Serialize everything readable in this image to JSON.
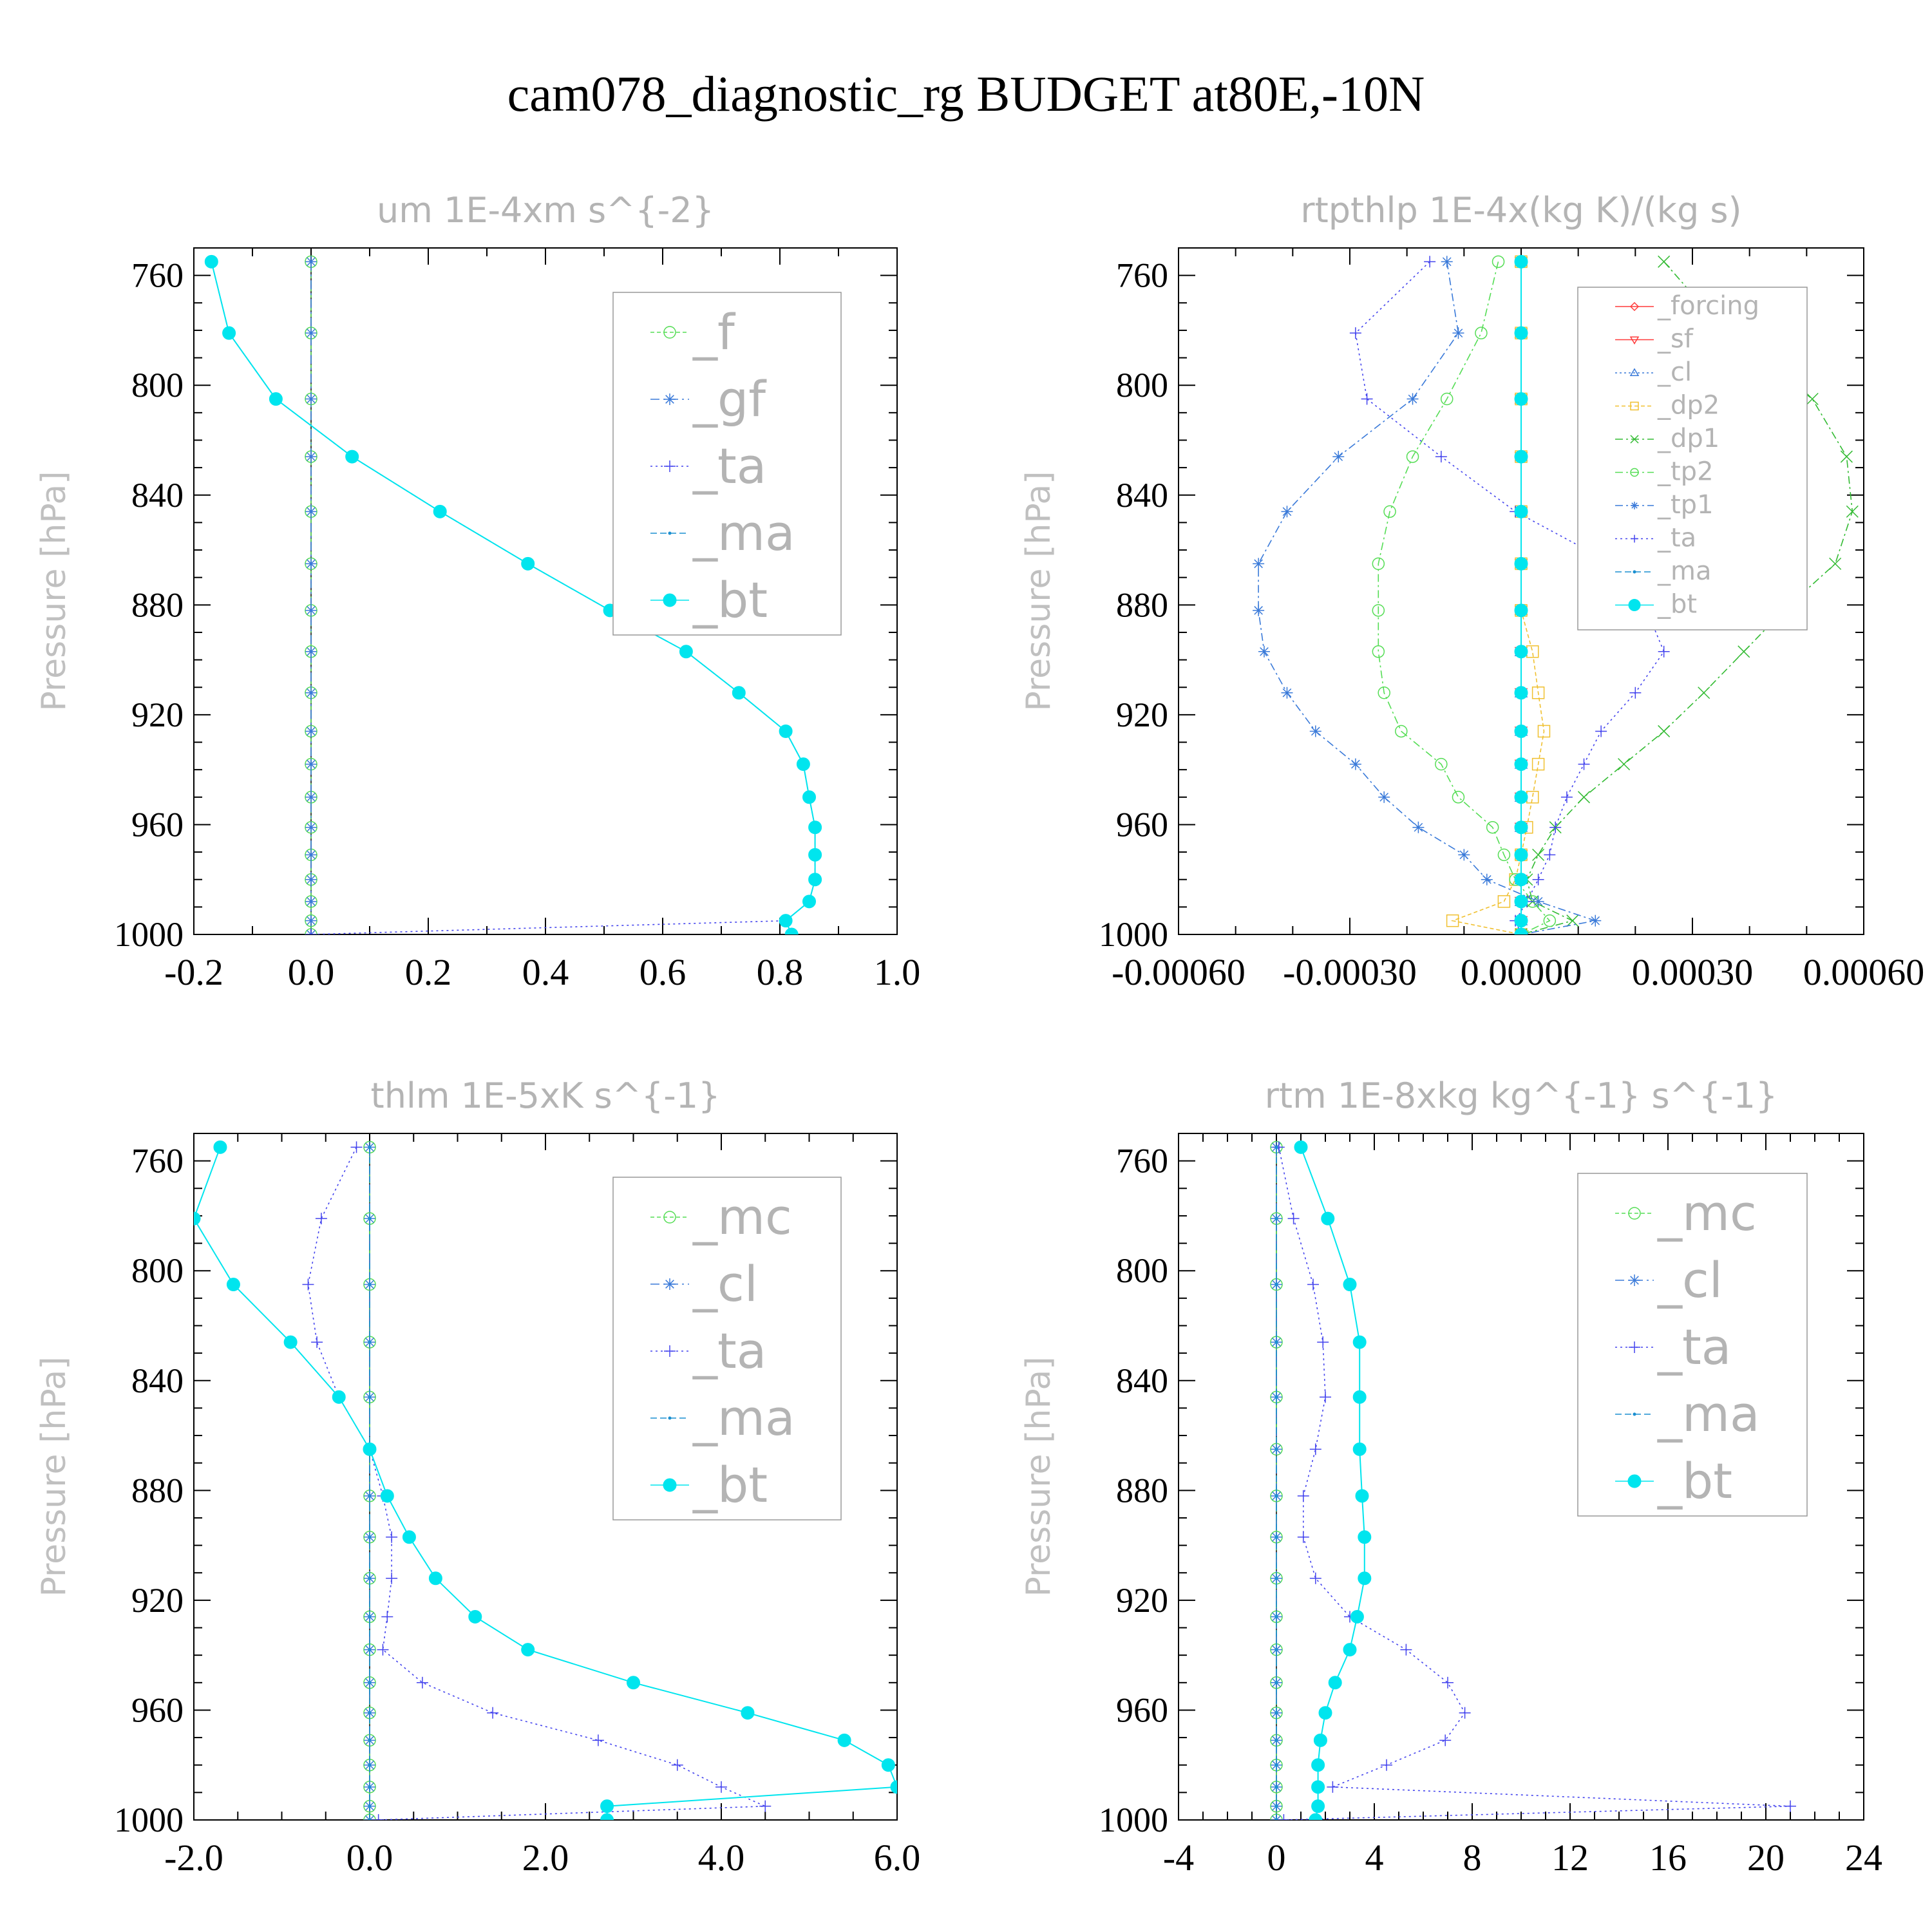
{
  "figure_title": "cam078_diagnostic_rg  BUDGET at80E,-10N",
  "colors": {
    "forcing": "#ff3b3b",
    "sf": "#ff3b3b",
    "cl": "#3a7ad9",
    "dp2": "#f0c030",
    "dp1": "#33bb33",
    "f": "#55dd55",
    "mc": "#55dd55",
    "tp2": "#55dd55",
    "gf": "#3a7ad9",
    "tp1": "#3a7ad9",
    "ta": "#4444ee",
    "ma": "#1a8fd0",
    "bt": "#00e5ee"
  },
  "chart_data": [
    {
      "type": "line",
      "title": "um  1E-4xm s^{-2}",
      "ylabel": "Pressure [hPa]",
      "xlim": [
        -0.2,
        1.0
      ],
      "ylim": [
        1000,
        750
      ],
      "xticks": [
        "-0.2",
        "0.0",
        "0.2",
        "0.4",
        "0.6",
        "0.8",
        "1.0"
      ],
      "yticks": [
        "760",
        "800",
        "840",
        "880",
        "920",
        "960",
        "1000"
      ],
      "legend": {
        "position": "top-right",
        "font": "large",
        "entries": [
          "_f",
          "_gf",
          "_ta",
          "_ma",
          "_bt"
        ]
      },
      "y": [
        755,
        781,
        805,
        826,
        846,
        865,
        882,
        897,
        912,
        926,
        938,
        950,
        961,
        971,
        980,
        988,
        995,
        1000
      ],
      "series": [
        {
          "name": "_f",
          "marker": "circle-open",
          "dash": "6,4",
          "values": [
            0,
            0,
            0,
            0,
            0,
            0,
            0,
            0,
            0,
            0,
            0,
            0,
            0,
            0,
            0,
            0,
            0,
            0
          ]
        },
        {
          "name": "_gf",
          "marker": "star",
          "dash": "14,6,3,6",
          "values": [
            0,
            0,
            0,
            0,
            0,
            0,
            0,
            0,
            0,
            0,
            0,
            0,
            0,
            0,
            0,
            0,
            0,
            0
          ]
        },
        {
          "name": "_ta",
          "marker": "plus",
          "dash": "3,5",
          "values": [
            -0.17,
            -0.14,
            -0.06,
            0.07,
            0.22,
            0.37,
            0.51,
            0.64,
            0.73,
            0.81,
            0.84,
            0.85,
            0.86,
            0.86,
            0.86,
            0.85,
            0.81,
            0.0
          ]
        },
        {
          "name": "_ma",
          "marker": "dot",
          "dash": "10,5",
          "values": [
            -0.17,
            -0.14,
            -0.06,
            0.07,
            0.22,
            0.37,
            0.51,
            0.64,
            0.73,
            0.81,
            0.84,
            0.85,
            0.86,
            0.86,
            0.86,
            0.85,
            0.81,
            0.82
          ]
        },
        {
          "name": "_bt",
          "marker": "filled-circle",
          "dash": "",
          "values": [
            -0.17,
            -0.14,
            -0.06,
            0.07,
            0.22,
            0.37,
            0.51,
            0.64,
            0.73,
            0.81,
            0.84,
            0.85,
            0.86,
            0.86,
            0.86,
            0.85,
            0.81,
            0.82
          ]
        }
      ]
    },
    {
      "type": "line",
      "title": "rtpthlp  1E-4x(kg K)/(kg s)",
      "ylabel": "Pressure [hPa]",
      "xlim": [
        -0.0006,
        0.0006
      ],
      "ylim": [
        1000,
        750
      ],
      "xticks": [
        "-0.00060",
        "-0.00030",
        "0.00000",
        "0.00030",
        "0.00060"
      ],
      "yticks": [
        "760",
        "800",
        "840",
        "880",
        "920",
        "960",
        "1000"
      ],
      "legend": {
        "position": "top-right",
        "font": "small",
        "entries": [
          "_forcing",
          "_sf",
          "_cl",
          "_dp2",
          "_dp1",
          "_tp2",
          "_tp1",
          "_ta",
          "_ma",
          "_bt"
        ]
      },
      "y": [
        755,
        781,
        805,
        826,
        846,
        865,
        882,
        897,
        912,
        926,
        938,
        950,
        961,
        971,
        980,
        988,
        995,
        1000
      ],
      "series": [
        {
          "name": "_forcing",
          "marker": "diamond",
          "dash": "",
          "values": [
            0,
            0,
            0,
            0,
            0,
            0,
            0,
            0,
            0,
            0,
            0,
            0,
            0,
            0,
            0,
            0,
            0,
            0
          ]
        },
        {
          "name": "_sf",
          "marker": "triangle-down",
          "dash": "",
          "values": [
            0,
            0,
            0,
            0,
            0,
            0,
            0,
            0,
            0,
            0,
            0,
            0,
            0,
            0,
            0,
            0,
            0,
            0
          ]
        },
        {
          "name": "_cl",
          "marker": "triangle-up",
          "dash": "3,4",
          "values": [
            0,
            0,
            0,
            0,
            0,
            0,
            0,
            0,
            0,
            0,
            0,
            0,
            0,
            0,
            0,
            0,
            0,
            0
          ]
        },
        {
          "name": "_dp2",
          "marker": "square",
          "dash": "6,4",
          "values": [
            0,
            0,
            0,
            0,
            0,
            0,
            0,
            2e-05,
            3e-05,
            4e-05,
            3e-05,
            2e-05,
            1e-05,
            0,
            -1e-05,
            -3e-05,
            -0.00012,
            0
          ]
        },
        {
          "name": "_dp1",
          "marker": "x",
          "dash": "12,5,3,5",
          "values": [
            0.00025,
            0.00036,
            0.00051,
            0.00057,
            0.00058,
            0.00055,
            0.00046,
            0.00039,
            0.00032,
            0.00025,
            0.00018,
            0.00011,
            6e-05,
            3e-05,
            1e-05,
            2e-05,
            9e-05,
            0
          ]
        },
        {
          "name": "_tp2",
          "marker": "circle-open",
          "dash": "12,5,3,5",
          "values": [
            -4e-05,
            -7e-05,
            -0.00013,
            -0.00019,
            -0.00023,
            -0.00025,
            -0.00025,
            -0.00025,
            -0.00024,
            -0.00021,
            -0.00014,
            -0.00011,
            -5e-05,
            -3e-05,
            -1e-05,
            2e-05,
            5e-05,
            0
          ]
        },
        {
          "name": "_tp1",
          "marker": "star",
          "dash": "12,5,3,5",
          "values": [
            -0.00013,
            -0.00011,
            -0.00019,
            -0.00032,
            -0.00041,
            -0.00046,
            -0.00046,
            -0.00045,
            -0.00041,
            -0.00036,
            -0.00029,
            -0.00024,
            -0.00018,
            -0.0001,
            -6e-05,
            3e-05,
            0.00013,
            0
          ]
        },
        {
          "name": "_ta",
          "marker": "plus",
          "dash": "3,5",
          "values": [
            -0.00016,
            -0.00029,
            -0.00027,
            -0.00014,
            -1e-05,
            0.00016,
            0.00022,
            0.00025,
            0.0002,
            0.00014,
            0.00011,
            8e-05,
            6e-05,
            5e-05,
            3e-05,
            1e-05,
            -1e-05,
            0
          ]
        },
        {
          "name": "_ma",
          "marker": "dot",
          "dash": "10,5",
          "values": [
            0,
            0,
            0,
            0,
            0,
            0,
            0,
            0,
            0,
            0,
            0,
            0,
            0,
            0,
            0,
            0,
            0,
            0
          ]
        },
        {
          "name": "_bt",
          "marker": "filled-circle",
          "dash": "",
          "values": [
            0,
            0,
            0,
            0,
            0,
            0,
            0,
            0,
            0,
            0,
            0,
            0,
            0,
            0,
            0,
            0,
            0,
            0
          ]
        }
      ]
    },
    {
      "type": "line",
      "title": "thlm  1E-5xK s^{-1}",
      "ylabel": "Pressure [hPa]",
      "xlim": [
        -2.0,
        6.0
      ],
      "ylim": [
        1000,
        750
      ],
      "xticks": [
        "-2.0",
        "0.0",
        "2.0",
        "4.0",
        "6.0"
      ],
      "yticks": [
        "760",
        "800",
        "840",
        "880",
        "920",
        "960",
        "1000"
      ],
      "legend": {
        "position": "top-right",
        "font": "large",
        "entries": [
          "_mc",
          "_cl",
          "_ta",
          "_ma",
          "_bt"
        ]
      },
      "y": [
        755,
        781,
        805,
        826,
        846,
        865,
        882,
        897,
        912,
        926,
        938,
        950,
        961,
        971,
        980,
        988,
        995,
        1000
      ],
      "series": [
        {
          "name": "_mc",
          "marker": "circle-open",
          "dash": "6,4",
          "values": [
            0,
            0,
            0,
            0,
            0,
            0,
            0,
            0,
            0,
            0,
            0,
            0,
            0,
            0,
            0,
            0,
            0,
            0
          ]
        },
        {
          "name": "_cl",
          "marker": "star",
          "dash": "14,6,3,6",
          "values": [
            0,
            0,
            0,
            0,
            0,
            0,
            0,
            0,
            0,
            0,
            0,
            0,
            0,
            0,
            0,
            0,
            0,
            0
          ]
        },
        {
          "name": "_ta",
          "marker": "plus",
          "dash": "3,5",
          "values": [
            -0.15,
            -0.55,
            -0.7,
            -0.6,
            -0.35,
            0,
            0.15,
            0.25,
            0.25,
            0.2,
            0.15,
            0.6,
            1.4,
            2.6,
            3.5,
            4.0,
            4.5,
            0.1
          ]
        },
        {
          "name": "_ma",
          "marker": "dot",
          "dash": "10,5",
          "values": [
            0,
            0,
            0,
            0,
            0,
            0,
            0,
            0,
            0,
            0,
            0,
            0,
            0,
            0,
            0,
            0,
            0,
            0
          ]
        },
        {
          "name": "_bt",
          "marker": "filled-circle",
          "dash": "",
          "values": [
            -1.7,
            -2.0,
            -1.55,
            -0.9,
            -0.35,
            0,
            0.2,
            0.45,
            0.75,
            1.2,
            1.8,
            3.0,
            4.3,
            5.4,
            5.9,
            6.0,
            2.7,
            2.7
          ]
        }
      ]
    },
    {
      "type": "line",
      "title": "rtm  1E-8xkg kg^{-1} s^{-1}",
      "ylabel": "Pressure [hPa]",
      "xlim": [
        -4,
        24
      ],
      "ylim": [
        1000,
        750
      ],
      "xticks": [
        "-4",
        "0",
        "4",
        "8",
        "12",
        "16",
        "20",
        "24"
      ],
      "yticks": [
        "760",
        "800",
        "840",
        "880",
        "920",
        "960",
        "1000"
      ],
      "legend": {
        "position": "top-right",
        "font": "large",
        "entries": [
          "_mc",
          "_cl",
          "_ta",
          "_ma",
          "_bt"
        ]
      },
      "y": [
        755,
        781,
        805,
        826,
        846,
        865,
        882,
        897,
        912,
        926,
        938,
        950,
        961,
        971,
        980,
        988,
        995,
        1000
      ],
      "series": [
        {
          "name": "_mc",
          "marker": "circle-open",
          "dash": "6,4",
          "values": [
            0,
            0,
            0,
            0,
            0,
            0,
            0,
            0,
            0,
            0,
            0,
            0,
            0,
            0,
            0,
            0,
            0,
            0
          ]
        },
        {
          "name": "_cl",
          "marker": "star",
          "dash": "14,6,3,6",
          "values": [
            0,
            0,
            0,
            0,
            0,
            0,
            0,
            0,
            0,
            0,
            0,
            0,
            0,
            0,
            0,
            0,
            0,
            0
          ]
        },
        {
          "name": "_ta",
          "marker": "plus",
          "dash": "3,5",
          "values": [
            0.1,
            0.7,
            1.5,
            1.9,
            2.0,
            1.6,
            1.1,
            1.1,
            1.6,
            3.0,
            5.3,
            7.0,
            7.7,
            6.9,
            4.5,
            2.3,
            21.0,
            0.3
          ]
        },
        {
          "name": "_ma",
          "marker": "dot",
          "dash": "10,5",
          "values": [
            0,
            0,
            0,
            0,
            0,
            0,
            0,
            0,
            0,
            0,
            0,
            0,
            0,
            0,
            0,
            0,
            0,
            0
          ]
        },
        {
          "name": "_bt",
          "marker": "filled-circle",
          "dash": "",
          "values": [
            1.0,
            2.1,
            3.0,
            3.4,
            3.4,
            3.4,
            3.5,
            3.6,
            3.6,
            3.3,
            3.0,
            2.4,
            2.0,
            1.8,
            1.7,
            1.7,
            1.7,
            1.6
          ]
        }
      ]
    }
  ]
}
